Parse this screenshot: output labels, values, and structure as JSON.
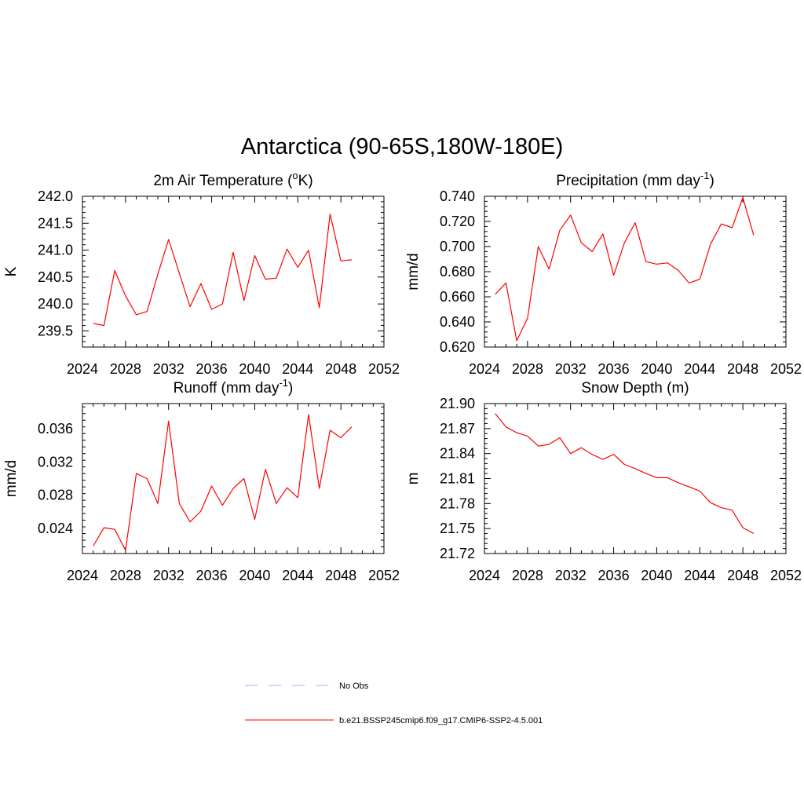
{
  "figure": {
    "title": "Antarctica (90-65S,180W-180E)"
  },
  "chart_data": [
    {
      "type": "line",
      "title": "2m Air Temperature (",
      "title_sup": "o",
      "title_suffix": "K)",
      "ylabel": "K",
      "xlabel": "",
      "xlim": [
        2024,
        2052
      ],
      "ylim": [
        239.2,
        242.0
      ],
      "xticks": [
        "2024",
        "2028",
        "2032",
        "2036",
        "2040",
        "2044",
        "2048",
        "2052"
      ],
      "yticks": [
        "239.5",
        "240.0",
        "240.5",
        "241.0",
        "241.5",
        "242.0"
      ],
      "grid": false,
      "color": "#ff0000",
      "x": [
        2025,
        2026,
        2027,
        2028,
        2029,
        2030,
        2031,
        2032,
        2033,
        2034,
        2035,
        2036,
        2037,
        2038,
        2039,
        2040,
        2041,
        2042,
        2043,
        2044,
        2045,
        2046,
        2047,
        2048,
        2049
      ],
      "y": [
        239.64,
        239.6,
        240.62,
        240.15,
        239.8,
        239.86,
        240.55,
        241.2,
        240.57,
        239.95,
        240.38,
        239.9,
        240.0,
        240.96,
        240.06,
        240.9,
        240.46,
        240.48,
        241.02,
        240.68,
        241.0,
        239.93,
        241.67,
        240.8,
        240.82
      ]
    },
    {
      "type": "line",
      "title": "Precipitation (mm day",
      "title_sup": "-1",
      "title_suffix": ")",
      "ylabel": "mm/d",
      "xlabel": "",
      "xlim": [
        2024,
        2052
      ],
      "ylim": [
        0.62,
        0.74
      ],
      "xticks": [
        "2024",
        "2028",
        "2032",
        "2036",
        "2040",
        "2044",
        "2048",
        "2052"
      ],
      "yticks": [
        "0.620",
        "0.640",
        "0.660",
        "0.680",
        "0.700",
        "0.720",
        "0.740"
      ],
      "grid": false,
      "color": "#ff0000",
      "x": [
        2025,
        2026,
        2027,
        2028,
        2029,
        2030,
        2031,
        2032,
        2033,
        2034,
        2035,
        2036,
        2037,
        2038,
        2039,
        2040,
        2041,
        2042,
        2043,
        2044,
        2045,
        2046,
        2047,
        2048,
        2049
      ],
      "y": [
        0.662,
        0.671,
        0.625,
        0.643,
        0.7,
        0.682,
        0.713,
        0.725,
        0.703,
        0.696,
        0.71,
        0.677,
        0.703,
        0.719,
        0.688,
        0.686,
        0.687,
        0.681,
        0.671,
        0.674,
        0.702,
        0.718,
        0.715,
        0.739,
        0.709
      ]
    },
    {
      "type": "line",
      "title": "Runoff (mm day",
      "title_sup": "-1",
      "title_suffix": ")",
      "ylabel": "mm/d",
      "xlabel": "",
      "xlim": [
        2024,
        2052
      ],
      "ylim": [
        0.021,
        0.039
      ],
      "xticks": [
        "2024",
        "2028",
        "2032",
        "2036",
        "2040",
        "2044",
        "2048",
        "2052"
      ],
      "yticks": [
        "0.024",
        "0.028",
        "0.032",
        "0.036"
      ],
      "grid": false,
      "color": "#ff0000",
      "x": [
        2025,
        2026,
        2027,
        2028,
        2029,
        2030,
        2031,
        2032,
        2033,
        2034,
        2035,
        2036,
        2037,
        2038,
        2039,
        2040,
        2041,
        2042,
        2043,
        2044,
        2045,
        2046,
        2047,
        2048,
        2049
      ],
      "y": [
        0.0219,
        0.0241,
        0.0239,
        0.0214,
        0.0306,
        0.03,
        0.027,
        0.0369,
        0.027,
        0.0248,
        0.0261,
        0.0291,
        0.0268,
        0.0288,
        0.03,
        0.0251,
        0.0311,
        0.027,
        0.0289,
        0.0277,
        0.0377,
        0.0288,
        0.0358,
        0.0349,
        0.0362
      ]
    },
    {
      "type": "line",
      "title": "Snow Depth (m)",
      "title_sup": "",
      "title_suffix": "",
      "ylabel": "m",
      "xlabel": "",
      "xlim": [
        2024,
        2052
      ],
      "ylim": [
        21.72,
        21.9
      ],
      "xticks": [
        "2024",
        "2028",
        "2032",
        "2036",
        "2040",
        "2044",
        "2048",
        "2052"
      ],
      "yticks": [
        "21.72",
        "21.75",
        "21.78",
        "21.81",
        "21.84",
        "21.87",
        "21.90"
      ],
      "grid": false,
      "color": "#ff0000",
      "x": [
        2025,
        2026,
        2027,
        2028,
        2029,
        2030,
        2031,
        2032,
        2033,
        2034,
        2035,
        2036,
        2037,
        2038,
        2039,
        2040,
        2041,
        2042,
        2043,
        2044,
        2045,
        2046,
        2047,
        2048,
        2049
      ],
      "y": [
        21.888,
        21.872,
        21.865,
        21.861,
        21.849,
        21.851,
        21.859,
        21.84,
        21.847,
        21.839,
        21.833,
        21.839,
        21.827,
        21.822,
        21.816,
        21.811,
        21.811,
        21.805,
        21.8,
        21.795,
        21.781,
        21.775,
        21.772,
        21.751,
        21.744
      ]
    }
  ],
  "legend": {
    "placement": "bottom-center",
    "items": [
      {
        "label": "No Obs",
        "color": "#aaaaff",
        "dash": "dashed"
      },
      {
        "label": "b.e21.BSSP245cmip6.f09_g17.CMIP6-SSP2-4.5.001",
        "color": "#ff0000",
        "dash": "solid"
      }
    ]
  }
}
